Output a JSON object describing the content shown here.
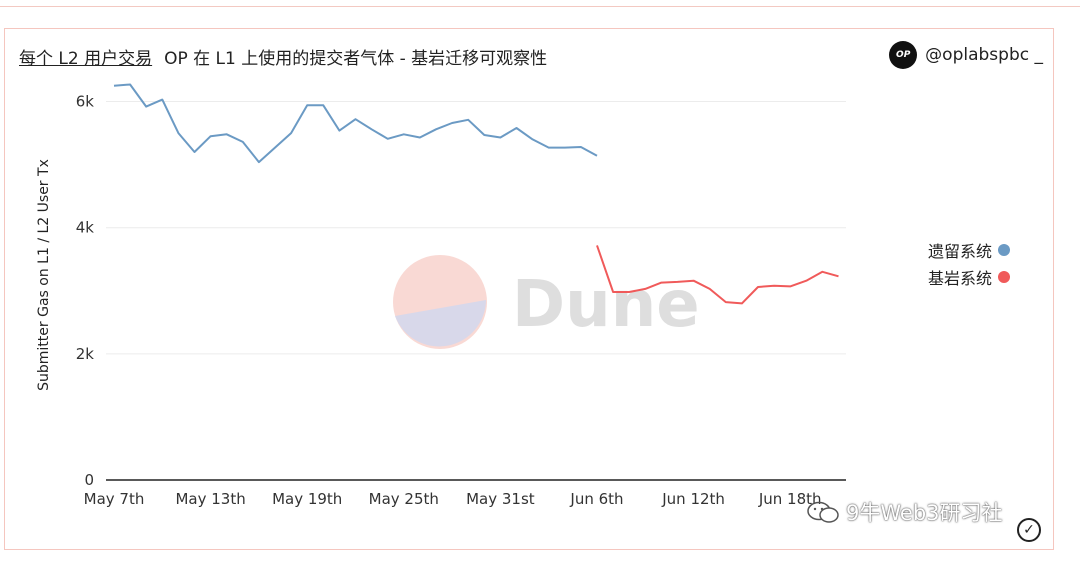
{
  "header": {
    "title_link": "每个 L2 用户交易",
    "subtitle": "OP 在 L1 上使用的提交者气体 - 基岩迁移可观察性",
    "author": "@oplabspbc _",
    "author_logo_text": "OP"
  },
  "dune_watermark": "Dune",
  "footer_watermark": "9牛Web3研习社",
  "chart_data": {
    "type": "line",
    "ylabel": "Submitter Gas on L1 / L2 User Tx",
    "xlabel": "",
    "ylim": [
      0,
      6500
    ],
    "yticks": [
      0,
      2000,
      4000,
      6000
    ],
    "ytick_labels": [
      "0",
      "2k",
      "4k",
      "6k"
    ],
    "x_start": "2023-05-07",
    "xticks": [
      "May 7th",
      "May 13th",
      "May 19th",
      "May 25th",
      "May 31st",
      "Jun 6th",
      "Jun 12th",
      "Jun 18th"
    ],
    "grid": true,
    "legend_position": "right",
    "series": [
      {
        "name": "遗留系统",
        "color": "#6b9ac4",
        "x": [
          "2023-05-07",
          "2023-05-08",
          "2023-05-09",
          "2023-05-10",
          "2023-05-11",
          "2023-05-12",
          "2023-05-13",
          "2023-05-14",
          "2023-05-15",
          "2023-05-16",
          "2023-05-17",
          "2023-05-18",
          "2023-05-19",
          "2023-05-20",
          "2023-05-21",
          "2023-05-22",
          "2023-05-23",
          "2023-05-24",
          "2023-05-25",
          "2023-05-26",
          "2023-05-27",
          "2023-05-28",
          "2023-05-29",
          "2023-05-30",
          "2023-05-31",
          "2023-06-01",
          "2023-06-02",
          "2023-06-03",
          "2023-06-04",
          "2023-06-05",
          "2023-06-06"
        ],
        "values": [
          6250,
          6270,
          5920,
          6030,
          5500,
          5200,
          5450,
          5480,
          5360,
          5040,
          5270,
          5500,
          5940,
          5940,
          5540,
          5720,
          5560,
          5410,
          5480,
          5430,
          5560,
          5660,
          5710,
          5470,
          5430,
          5580,
          5400,
          5270,
          5270,
          5280,
          5140
        ]
      },
      {
        "name": "基岩系统",
        "color": "#f05a5a",
        "x": [
          "2023-06-06",
          "2023-06-07",
          "2023-06-08",
          "2023-06-09",
          "2023-06-10",
          "2023-06-11",
          "2023-06-12",
          "2023-06-13",
          "2023-06-14",
          "2023-06-15",
          "2023-06-16",
          "2023-06-17",
          "2023-06-18",
          "2023-06-19",
          "2023-06-20",
          "2023-06-21"
        ],
        "values": [
          3720,
          2980,
          2980,
          3030,
          3130,
          3140,
          3160,
          3030,
          2820,
          2800,
          3060,
          3080,
          3070,
          3160,
          3300,
          3230
        ]
      }
    ]
  }
}
